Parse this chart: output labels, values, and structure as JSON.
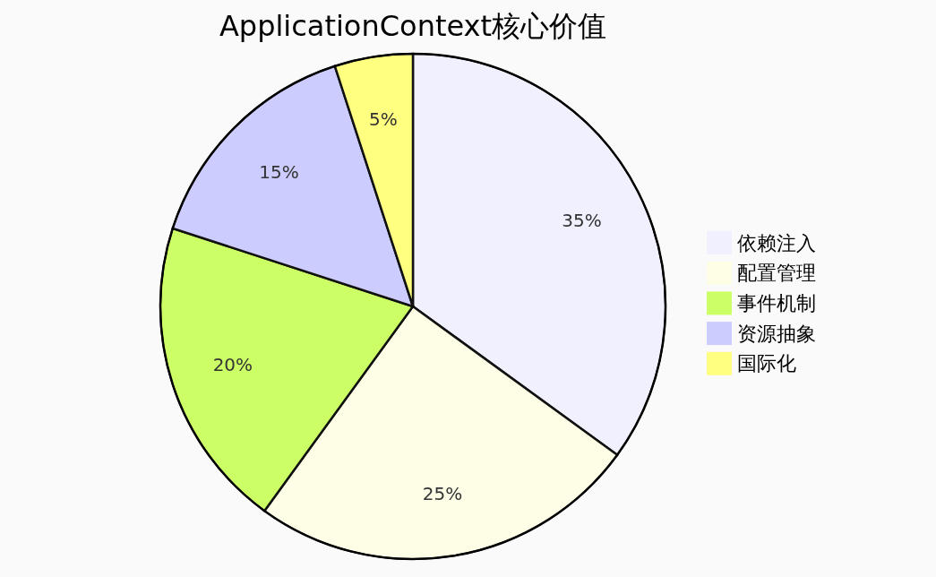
{
  "chart_data": {
    "type": "pie",
    "title": "ApplicationContext核心价值",
    "categories": [
      "依赖注入",
      "配置管理",
      "事件机制",
      "资源抽象",
      "国际化"
    ],
    "values": [
      35,
      25,
      20,
      15,
      5
    ],
    "colors": [
      "#f0f0ff",
      "#fefee6",
      "#ccff66",
      "#ccccff",
      "#ffff80"
    ],
    "value_labels": [
      "35%",
      "25%",
      "20%",
      "15%",
      "5%"
    ],
    "legend": "right"
  }
}
